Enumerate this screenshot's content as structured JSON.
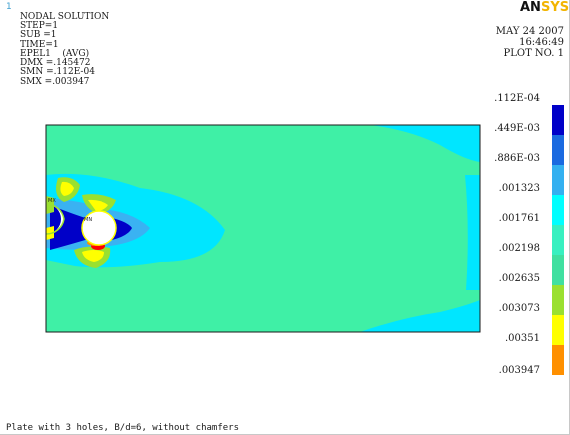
{
  "window": {
    "number": "1"
  },
  "logo": {
    "part1": "AN",
    "part2": "SYS"
  },
  "header": {
    "title": "NODAL SOLUTION",
    "date": "MAY 24 2007",
    "time": "16:46:49",
    "plot_no": "PLOT NO.   1"
  },
  "info": [
    "STEP=1",
    "SUB =1",
    "TIME=1",
    "EPEL1    (AVG)",
    "DMX =.145472",
    "SMN =.112E-04",
    "SMX =.003947"
  ],
  "plot_labels": {
    "min": "MN",
    "max": "MX"
  },
  "legend": {
    "labels": [
      ".112E-04",
      ".449E-03",
      ".886E-03",
      ".001323",
      ".001761",
      ".002198",
      ".002635",
      ".003073",
      ".00351",
      ".003947"
    ],
    "colors": [
      "#0000c8",
      "#1a6ae0",
      "#33b0f0",
      "#00ffff",
      "#38f0c0",
      "#40e0a0",
      "#9ae030",
      "#ffff00",
      "#ff9000",
      "#ff0000"
    ]
  },
  "colors": {
    "field": "#3ff0a6",
    "low": "#00e6ff",
    "deep": "#0000c8",
    "mid_blue": "#3ab2f2",
    "outline": "#1a1a1a"
  },
  "footer": {
    "caption": "Plate with 3 holes, B/d=6, without chamfers"
  }
}
